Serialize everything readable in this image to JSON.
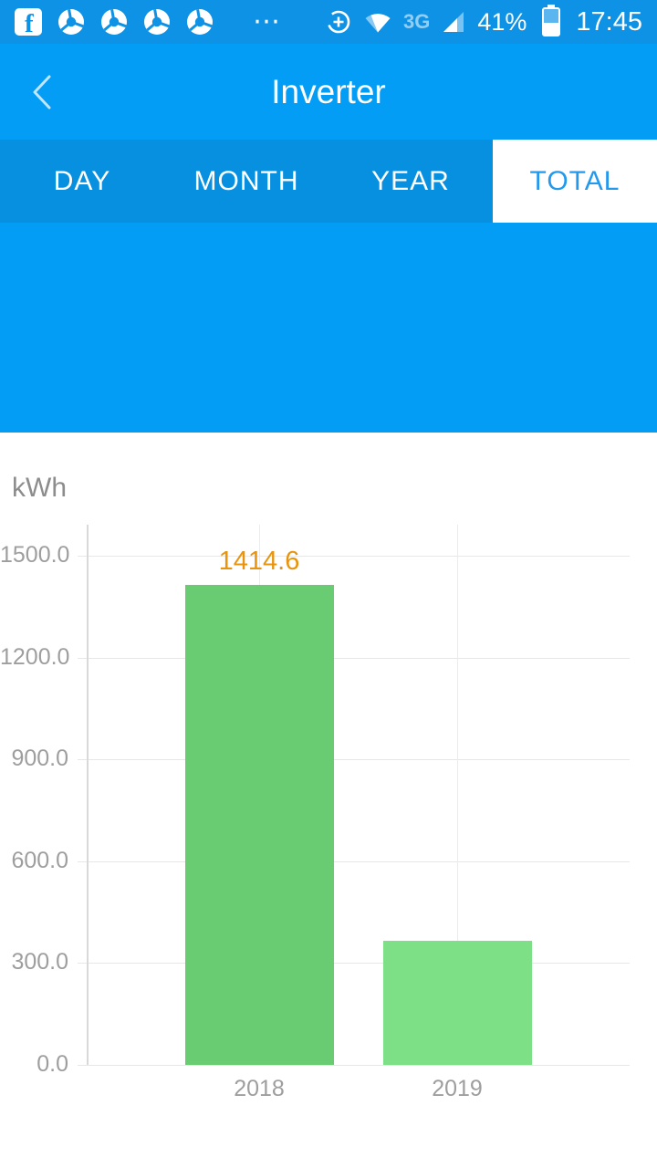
{
  "status_bar": {
    "time": "17:45",
    "battery_percent": "41%",
    "network_type": "3G",
    "overflow_glyph": "⋯",
    "notification_icons": [
      "facebook",
      "chrome",
      "chrome",
      "chrome",
      "chrome"
    ]
  },
  "header": {
    "title": "Inverter"
  },
  "tabs": {
    "selected_index": 3,
    "items": [
      {
        "label": "DAY"
      },
      {
        "label": "MONTH"
      },
      {
        "label": "YEAR"
      },
      {
        "label": "TOTAL"
      }
    ]
  },
  "chart_data": {
    "type": "bar",
    "title": "",
    "ylabel": "kWh",
    "xlabel": "",
    "categories": [
      "2018",
      "2019"
    ],
    "values": [
      1414.6,
      365
    ],
    "value_labels": [
      "1414.6",
      ""
    ],
    "ylim": [
      0,
      1500
    ],
    "ytick_step": 300,
    "ytick_labels": [
      "0.0",
      "300.0",
      "600.0",
      "900.0",
      "1200.0",
      "1500.0"
    ],
    "grid": true,
    "legend_position": "none",
    "bar_colors": [
      "#69cb72",
      "#7de087"
    ],
    "value_label_color": "#e9940e"
  },
  "colors": {
    "status_bar_bg": "#0e92e6",
    "primary_blue": "#039df5",
    "tab_bar_bg": "#0890e0",
    "selected_tab_text": "#2399ee",
    "axis_text": "#9e9e9e",
    "gridline": "#e7e7e7",
    "bar_2018": "#69cb72",
    "bar_2019": "#7de087",
    "value_label": "#e9940e"
  }
}
